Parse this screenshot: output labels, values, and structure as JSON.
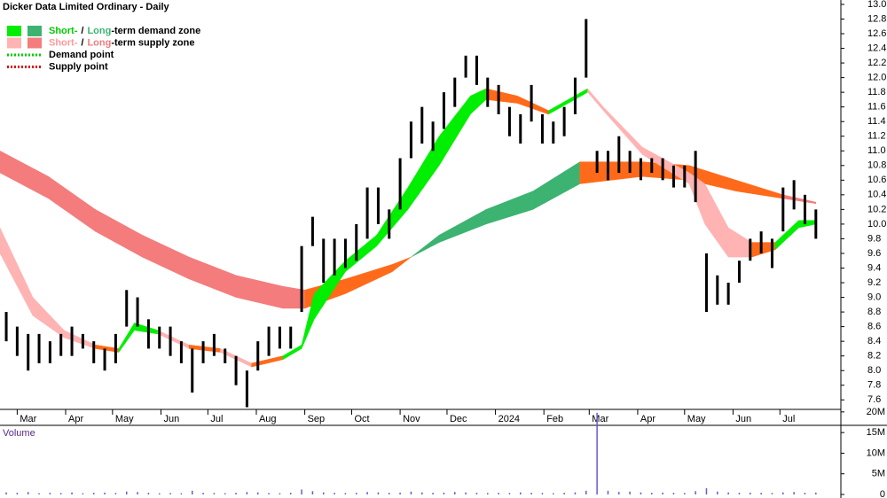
{
  "chart_data": [
    {
      "type": "stock",
      "title": "Dicker Data Limited Ordinary - Daily",
      "xlim": [
        -11,
        527
      ],
      "ylim": [
        7.47,
        13.06
      ],
      "xticks": [
        {
          "value": 0,
          "label": "Mar"
        },
        {
          "value": 31,
          "label": "Apr"
        },
        {
          "value": 61,
          "label": "May"
        },
        {
          "value": 92,
          "label": "Jun"
        },
        {
          "value": 122,
          "label": "Jul"
        },
        {
          "value": 153,
          "label": "Aug"
        },
        {
          "value": 184,
          "label": "Sep"
        },
        {
          "value": 214,
          "label": "Oct"
        },
        {
          "value": 245,
          "label": "Nov"
        },
        {
          "value": 275,
          "label": "Dec"
        },
        {
          "value": 306,
          "label": "2024"
        },
        {
          "value": 337,
          "label": "Feb"
        },
        {
          "value": 366,
          "label": "Mar"
        },
        {
          "value": 397,
          "label": "Apr"
        },
        {
          "value": 427,
          "label": "May"
        },
        {
          "value": 458,
          "label": "Jun"
        },
        {
          "value": 488,
          "label": "Jul"
        }
      ],
      "yticks": [
        7.6,
        7.8,
        {
          "value": 8,
          "label": "8.0"
        },
        8.2,
        8.4,
        8.6,
        8.8,
        {
          "value": 9,
          "label": "9.0"
        },
        9.2,
        9.4,
        9.6,
        9.8,
        {
          "value": 10,
          "label": "10.0"
        },
        10.2,
        10.4,
        10.6,
        10.8,
        {
          "value": 11,
          "label": "11.0"
        },
        11.2,
        11.4,
        11.6,
        11.8,
        {
          "value": 12,
          "label": "12.0"
        },
        12.2,
        12.4,
        12.6,
        12.8,
        {
          "value": 13,
          "label": "13.0"
        }
      ],
      "bar_color": "#000000",
      "x": [
        -7,
        0,
        7,
        14,
        21,
        28,
        35,
        42,
        49,
        56,
        63,
        70,
        77,
        84,
        91,
        98,
        105,
        112,
        119,
        126,
        133,
        140,
        147,
        154,
        161,
        168,
        175,
        182,
        189,
        196,
        203,
        210,
        217,
        224,
        231,
        238,
        245,
        252,
        259,
        266,
        273,
        280,
        287,
        294,
        301,
        308,
        315,
        322,
        329,
        336,
        343,
        350,
        357,
        364,
        371,
        378,
        385,
        392,
        399,
        406,
        413,
        420,
        427,
        434,
        441,
        448,
        455,
        462,
        469,
        476,
        483,
        490,
        497,
        504,
        511
      ],
      "low": [
        8.4,
        8.2,
        8.0,
        8.1,
        8.1,
        8.2,
        8.2,
        8.3,
        8.1,
        8.0,
        8.1,
        8.6,
        8.6,
        8.3,
        8.3,
        8.2,
        8.1,
        7.7,
        8.1,
        8.2,
        8.1,
        7.8,
        7.5,
        8.0,
        8.2,
        8.3,
        8.3,
        8.8,
        9.7,
        9.2,
        9.3,
        9.4,
        9.5,
        9.8,
        10.0,
        9.8,
        10.2,
        10.9,
        11.1,
        11.0,
        11.3,
        11.6,
        12.0,
        11.9,
        11.6,
        11.5,
        11.2,
        11.1,
        11.4,
        11.1,
        11.1,
        11.2,
        11.5,
        12.0,
        10.7,
        10.6,
        10.7,
        10.7,
        10.6,
        10.7,
        10.6,
        10.5,
        10.5,
        10.3,
        8.8,
        8.9,
        8.9,
        9.2,
        9.5,
        9.6,
        9.4,
        9.9,
        10.2,
        10.0,
        9.8
      ],
      "high": [
        8.8,
        8.6,
        8.5,
        8.5,
        8.4,
        8.5,
        8.6,
        8.5,
        8.4,
        8.3,
        8.5,
        9.1,
        9.0,
        8.7,
        8.6,
        8.6,
        8.4,
        8.3,
        8.4,
        8.5,
        8.3,
        8.2,
        8.0,
        8.4,
        8.6,
        8.6,
        8.6,
        9.7,
        10.1,
        9.8,
        9.8,
        9.8,
        10.0,
        10.5,
        10.5,
        10.2,
        10.9,
        11.4,
        11.6,
        11.4,
        11.8,
        12.0,
        12.3,
        12.3,
        12.0,
        11.9,
        11.6,
        11.5,
        11.9,
        11.5,
        11.4,
        11.6,
        12.0,
        12.8,
        11.0,
        11.0,
        11.2,
        11.0,
        10.9,
        10.9,
        10.9,
        10.8,
        10.8,
        11.0,
        9.6,
        9.3,
        9.2,
        9.5,
        9.8,
        9.9,
        9.8,
        10.5,
        10.6,
        10.4,
        10.2
      ],
      "long_zone": {
        "x": [
          -11,
          20,
          50,
          80,
          110,
          140,
          170,
          184,
          210,
          240,
          252,
          270,
          300,
          330,
          360,
          400,
          430,
          460,
          490,
          511
        ],
        "upper": [
          11.0,
          10.65,
          10.2,
          9.85,
          9.55,
          9.3,
          9.15,
          9.1,
          9.25,
          9.45,
          9.55,
          9.85,
          10.2,
          10.45,
          10.85,
          10.85,
          10.8,
          10.6,
          10.4,
          10.3
        ],
        "lower": [
          10.7,
          10.35,
          9.9,
          9.55,
          9.25,
          9.0,
          8.85,
          8.85,
          9.05,
          9.35,
          9.55,
          9.75,
          10.0,
          10.2,
          10.55,
          10.65,
          10.6,
          10.45,
          10.35,
          10.28
        ],
        "colors": [
          "#f47c7c",
          "#f47c7c",
          "#f47c7c",
          "#f47c7c",
          "#f47c7c",
          "#f47c7c",
          "#f47c7c",
          "#ff6a1a",
          "#ff6a1a",
          "#ff6a1a",
          "#3cb371",
          "#3cb371",
          "#3cb371",
          "#3cb371",
          "#ff6a1a",
          "#ff6a1a",
          "#ff6a1a",
          "#ff6a1a",
          "#f47c7c"
        ]
      },
      "short_zone": {
        "x": [
          -11,
          10,
          30,
          50,
          65,
          75,
          90,
          110,
          130,
          150,
          170,
          182,
          190,
          210,
          230,
          250,
          270,
          290,
          300,
          320,
          340,
          365,
          375,
          400,
          430,
          440,
          455,
          470,
          485,
          500,
          511
        ],
        "upper": [
          9.95,
          9.0,
          8.55,
          8.35,
          8.3,
          8.65,
          8.55,
          8.35,
          8.3,
          8.1,
          8.2,
          8.35,
          9.05,
          9.5,
          9.85,
          10.5,
          11.2,
          11.75,
          11.85,
          11.75,
          11.55,
          11.85,
          11.6,
          11.05,
          10.7,
          10.55,
          9.95,
          9.75,
          9.75,
          10.05,
          10.05
        ],
        "lower": [
          9.6,
          8.75,
          8.45,
          8.3,
          8.25,
          8.55,
          8.5,
          8.3,
          8.25,
          8.05,
          8.15,
          8.3,
          8.7,
          9.35,
          9.7,
          10.2,
          10.8,
          11.5,
          11.7,
          11.65,
          11.5,
          11.8,
          11.55,
          10.95,
          10.55,
          10.0,
          9.55,
          9.55,
          9.65,
          9.95,
          10.0
        ],
        "colors": [
          "#ffb3b3",
          "#ffb3b3",
          "#ffb3b3",
          "#ff6a1a",
          "#00ee00",
          "#00ee00",
          "#ffb3b3",
          "#ff6a1a",
          "#ffb3b3",
          "#ff6a1a",
          "#00ee00",
          "#00ee00",
          "#00ee00",
          "#00ee00",
          "#00ee00",
          "#00ee00",
          "#00ee00",
          "#00ee00",
          "#ff6a1a",
          "#ff6a1a",
          "#00ee00",
          "#ffb3b3",
          "#ffb3b3",
          "#ffb3b3",
          "#ffb3b3",
          "#ffb3b3",
          "#ffb3b3",
          "#ff6a1a",
          "#00ee00",
          "#00ee00"
        ]
      },
      "legend": [
        {
          "parts": [
            "Short-",
            "/",
            "Long",
            "-term demand zone"
          ],
          "text_colors": [
            "#00cc00",
            "#000000",
            "#3cb371",
            "#000000"
          ],
          "swatches": [
            "#00ee00",
            "#3cb371"
          ]
        },
        {
          "parts": [
            "Short-",
            "/",
            "Long",
            "-term supply zone"
          ],
          "text_colors": [
            "#ff9999",
            "#000000",
            "#f47c7c",
            "#000000"
          ],
          "swatches": [
            "#ffb3b3",
            "#f47c7c"
          ]
        },
        {
          "parts": [
            "Demand point"
          ],
          "text_colors": [
            "#000000"
          ],
          "line": "#00cc00"
        },
        {
          "parts": [
            "Supply point"
          ],
          "text_colors": [
            "#000000"
          ],
          "line": "#dd0000"
        }
      ]
    },
    {
      "type": "bar",
      "title": "Volume",
      "color": "#6a5acd",
      "xlim": [
        -11,
        527
      ],
      "ylim": [
        0,
        20400000
      ],
      "yticks": [
        0,
        {
          "value": 5000000,
          "label": "5M"
        },
        {
          "value": 10000000,
          "label": "10M"
        },
        {
          "value": 15000000,
          "label": "15M"
        },
        {
          "value": 20000000,
          "label": "20M"
        }
      ],
      "x": [
        -7,
        0,
        7,
        14,
        21,
        28,
        35,
        42,
        49,
        56,
        63,
        70,
        77,
        84,
        91,
        98,
        105,
        112,
        119,
        126,
        133,
        140,
        147,
        154,
        161,
        168,
        175,
        182,
        189,
        196,
        203,
        210,
        217,
        224,
        231,
        238,
        245,
        252,
        259,
        266,
        273,
        280,
        287,
        294,
        301,
        308,
        315,
        322,
        329,
        336,
        343,
        350,
        357,
        364,
        371,
        378,
        385,
        392,
        399,
        406,
        413,
        420,
        427,
        434,
        441,
        448,
        455,
        462,
        469,
        476,
        483,
        490,
        497,
        504,
        511
      ],
      "values": [
        500000,
        400000,
        600000,
        300000,
        400000,
        350000,
        500000,
        300000,
        400000,
        450000,
        350000,
        700000,
        600000,
        400000,
        300000,
        350000,
        300000,
        900000,
        400000,
        350000,
        300000,
        400000,
        600000,
        500000,
        350000,
        300000,
        400000,
        1200000,
        800000,
        500000,
        400000,
        350000,
        400000,
        600000,
        500000,
        400000,
        450000,
        700000,
        500000,
        400000,
        450000,
        600000,
        500000,
        400000,
        350000,
        400000,
        350000,
        500000,
        400000,
        350000,
        300000,
        400000,
        500000,
        900000,
        19800000,
        900000,
        600000,
        700000,
        500000,
        400000,
        450000,
        400000,
        350000,
        800000,
        1500000,
        700000,
        500000,
        400000,
        450000,
        400000,
        350000,
        500000,
        600000,
        400000,
        450000
      ]
    }
  ]
}
